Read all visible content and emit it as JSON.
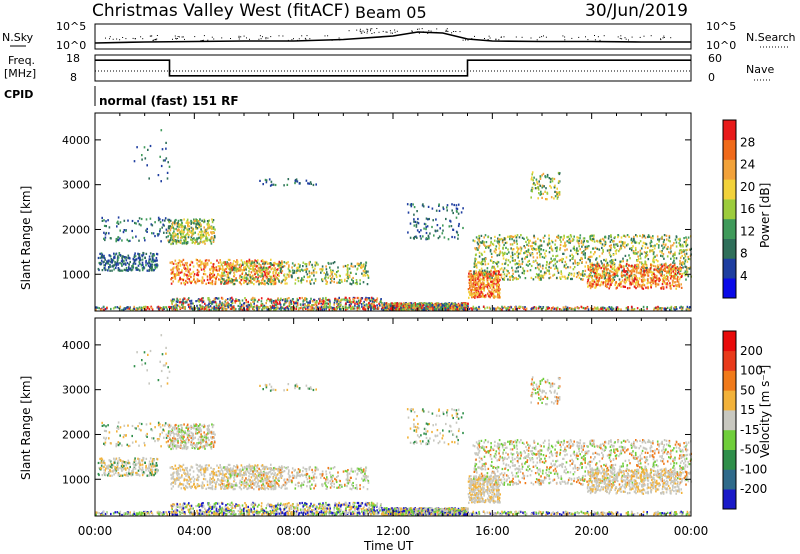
{
  "header": {
    "title": "Christmas Valley West (fitACF)",
    "beam": "Beam 05",
    "date": "30/Jun/2019"
  },
  "panels": {
    "noise": {
      "left_label": "N.Sky",
      "right_label": "N.Search",
      "left_ticks": [
        "10^5",
        "10^0"
      ],
      "right_ticks": [
        "10^5",
        "10^0"
      ]
    },
    "freq": {
      "left_label_line1": "Freq.",
      "left_label_line2": "[MHz]",
      "left_ticks": [
        "18",
        "8"
      ],
      "right_label": "Nave",
      "right_ticks": [
        "60",
        "0"
      ]
    },
    "cpid": {
      "label": "CPID",
      "text": "normal (fast) 151 RF"
    }
  },
  "colors": {
    "power": [
      "#0a0ae8",
      "#1e3ea0",
      "#2f6f5a",
      "#3f9a5a",
      "#9ccc3c",
      "#f2d23a",
      "#f2a23a",
      "#f06a1a",
      "#e81a1a"
    ],
    "velocity": [
      "#1a1ac8",
      "#2f6a8a",
      "#2f8f4a",
      "#6fce3a",
      "#c8c8c0",
      "#f2b23a",
      "#f07a1a",
      "#e83a1a",
      "#e80a0a"
    ]
  },
  "chart_data": [
    {
      "type": "line",
      "title": "Christmas Valley West (fitACF)",
      "panel": "noise",
      "xlabel": "",
      "ylabel": "N.Sky",
      "x_unit": "hours UT",
      "x": [
        0,
        2,
        4,
        6,
        8,
        10,
        12,
        13,
        14,
        15,
        16,
        18,
        20,
        22,
        24
      ],
      "series": [
        {
          "name": "N.Sky",
          "values": [
            1.2,
            1.4,
            1.5,
            1.6,
            1.6,
            1.9,
            2.6,
            3.4,
            3.2,
            2.0,
            1.6,
            1.5,
            1.5,
            1.4,
            1.4
          ]
        }
      ],
      "ylim": [
        0,
        5
      ]
    },
    {
      "type": "line",
      "panel": "frequency",
      "ylabel": "Freq. [MHz]",
      "x": [
        0,
        3,
        3,
        15,
        15,
        24
      ],
      "series": [
        {
          "name": "Freq.",
          "values": [
            16,
            16,
            10,
            10,
            16,
            16
          ]
        }
      ],
      "ylim": [
        8,
        18
      ]
    },
    {
      "type": "heatmap",
      "panel": "power",
      "xlabel": "",
      "ylabel": "Slant Range [km]",
      "colorbar_label": "Power [dB]",
      "colorbar_ticks": [
        "4",
        "8",
        "12",
        "16",
        "20",
        "24",
        "28"
      ],
      "x_ticks": [
        "00:00",
        "04:00",
        "08:00",
        "12:00",
        "16:00",
        "20:00",
        "00:00"
      ],
      "y_ticks": [
        "1000",
        "2000",
        "3000",
        "4000"
      ],
      "xlim": [
        0,
        24
      ],
      "ylim": [
        180,
        4600
      ]
    },
    {
      "type": "heatmap",
      "panel": "velocity",
      "xlabel": "Time UT",
      "ylabel": "Slant Range [km]",
      "colorbar_label": "Velocity [m s⁻¹]",
      "colorbar_ticks": [
        "200",
        "100",
        "50",
        "15",
        "-15",
        "-50",
        "-100",
        "-200"
      ],
      "x_ticks": [
        "00:00",
        "04:00",
        "08:00",
        "12:00",
        "16:00",
        "20:00",
        "00:00"
      ],
      "y_ticks": [
        "1000",
        "2000",
        "3000",
        "4000"
      ],
      "xlim": [
        0,
        24
      ],
      "ylim": [
        180,
        4600
      ]
    }
  ]
}
